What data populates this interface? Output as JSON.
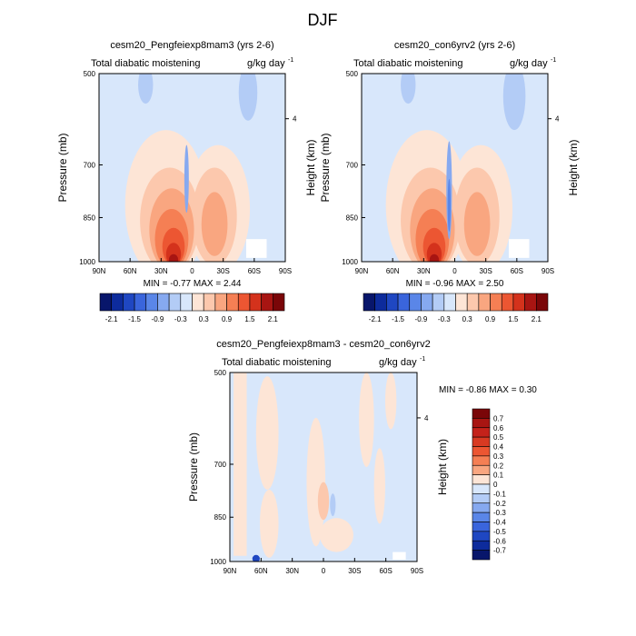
{
  "suptitle": "DJF",
  "chart_data": [
    {
      "type": "heatmap",
      "title": "cesm20_Pengfeiexp8mam3 (yrs 2-6)",
      "left_label": "Total diabatic moistening",
      "units": "g/kg day",
      "units_exp": "-1",
      "xlabel": "",
      "ylabel": "Pressure (mb)",
      "right_label": "Height (km)",
      "xticks": [
        "90N",
        "60N",
        "30N",
        "0",
        "30S",
        "60S",
        "90S"
      ],
      "x_values": [
        90,
        60,
        30,
        0,
        -30,
        -60,
        -90
      ],
      "yticks": [
        "500",
        "700",
        "850",
        "1000"
      ],
      "y_values": [
        500,
        700,
        850,
        1000
      ],
      "right_ticks": [
        "4"
      ],
      "ylim": [
        1000,
        500
      ],
      "min_label": "MIN =",
      "min_value": "-0.77",
      "max_label": "MAX =",
      "max_value": "2.44",
      "stats": "MIN =  -0.77  MAX =   2.44",
      "colorbar": {
        "orientation": "horizontal",
        "labels": [
          "-2.1",
          "-1.5",
          "-0.9",
          "-0.3",
          "0.3",
          "0.9",
          "1.5",
          "2.1"
        ],
        "colors": [
          "#08166b",
          "#0d2b9c",
          "#1f47c2",
          "#3a65dc",
          "#5a86e8",
          "#86a9f0",
          "#b3ccf6",
          "#d8e7fb",
          "#fde5d6",
          "#fcc8ad",
          "#f9a680",
          "#f57f54",
          "#ec5632",
          "#d4321c",
          "#a81512",
          "#7a0608"
        ]
      }
    },
    {
      "type": "heatmap",
      "title": "cesm20_con6yrv2 (yrs 2-6)",
      "left_label": "Total diabatic moistening",
      "units": "g/kg day",
      "units_exp": "-1",
      "xlabel": "",
      "ylabel": "Pressure (mb)",
      "right_label": "Height (km)",
      "xticks": [
        "90N",
        "60N",
        "30N",
        "0",
        "30S",
        "60S",
        "90S"
      ],
      "x_values": [
        90,
        60,
        30,
        0,
        -30,
        -60,
        -90
      ],
      "yticks": [
        "500",
        "700",
        "850",
        "1000"
      ],
      "y_values": [
        500,
        700,
        850,
        1000
      ],
      "right_ticks": [
        "4"
      ],
      "ylim": [
        1000,
        500
      ],
      "min_label": "MIN =",
      "min_value": "-0.96",
      "max_label": "MAX =",
      "max_value": "2.50",
      "stats": "MIN =  -0.96  MAX =   2.50",
      "colorbar": {
        "orientation": "horizontal",
        "labels": [
          "-2.1",
          "-1.5",
          "-0.9",
          "-0.3",
          "0.3",
          "0.9",
          "1.5",
          "2.1"
        ],
        "colors": [
          "#08166b",
          "#0d2b9c",
          "#1f47c2",
          "#3a65dc",
          "#5a86e8",
          "#86a9f0",
          "#b3ccf6",
          "#d8e7fb",
          "#fde5d6",
          "#fcc8ad",
          "#f9a680",
          "#f57f54",
          "#ec5632",
          "#d4321c",
          "#a81512",
          "#7a0608"
        ]
      }
    },
    {
      "type": "heatmap",
      "title": "cesm20_Pengfeiexp8mam3 - cesm20_con6yrv2",
      "left_label": "Total diabatic moistening",
      "units": "g/kg day",
      "units_exp": "-1",
      "xlabel": "",
      "ylabel": "Pressure (mb)",
      "right_label": "Height (km)",
      "xticks": [
        "90N",
        "60N",
        "30N",
        "0",
        "30S",
        "60S",
        "90S"
      ],
      "x_values": [
        90,
        60,
        30,
        0,
        -30,
        -60,
        -90
      ],
      "yticks": [
        "500",
        "700",
        "850",
        "1000"
      ],
      "y_values": [
        500,
        700,
        850,
        1000
      ],
      "right_ticks": [
        "4"
      ],
      "ylim": [
        1000,
        500
      ],
      "min_label": "MIN =",
      "min_value": "-0.86",
      "max_label": "MAX =",
      "max_value": "0.30",
      "stats": "MIN =  -0.86  MAX =   0.30",
      "colorbar": {
        "orientation": "vertical",
        "labels": [
          "0.7",
          "0.6",
          "0.5",
          "0.4",
          "0.3",
          "0.2",
          "0.1",
          "0",
          "-0.1",
          "-0.2",
          "-0.3",
          "-0.4",
          "-0.5",
          "-0.6",
          "-0.7"
        ],
        "colors": [
          "#7a0608",
          "#a81512",
          "#c4221a",
          "#d83a22",
          "#ec5632",
          "#f57f54",
          "#f9a680",
          "#fde5d6",
          "#d8e7fb",
          "#b3ccf6",
          "#86a9f0",
          "#5a86e8",
          "#3a65dc",
          "#1f47c2",
          "#0d2b9c",
          "#08166b"
        ]
      }
    }
  ]
}
